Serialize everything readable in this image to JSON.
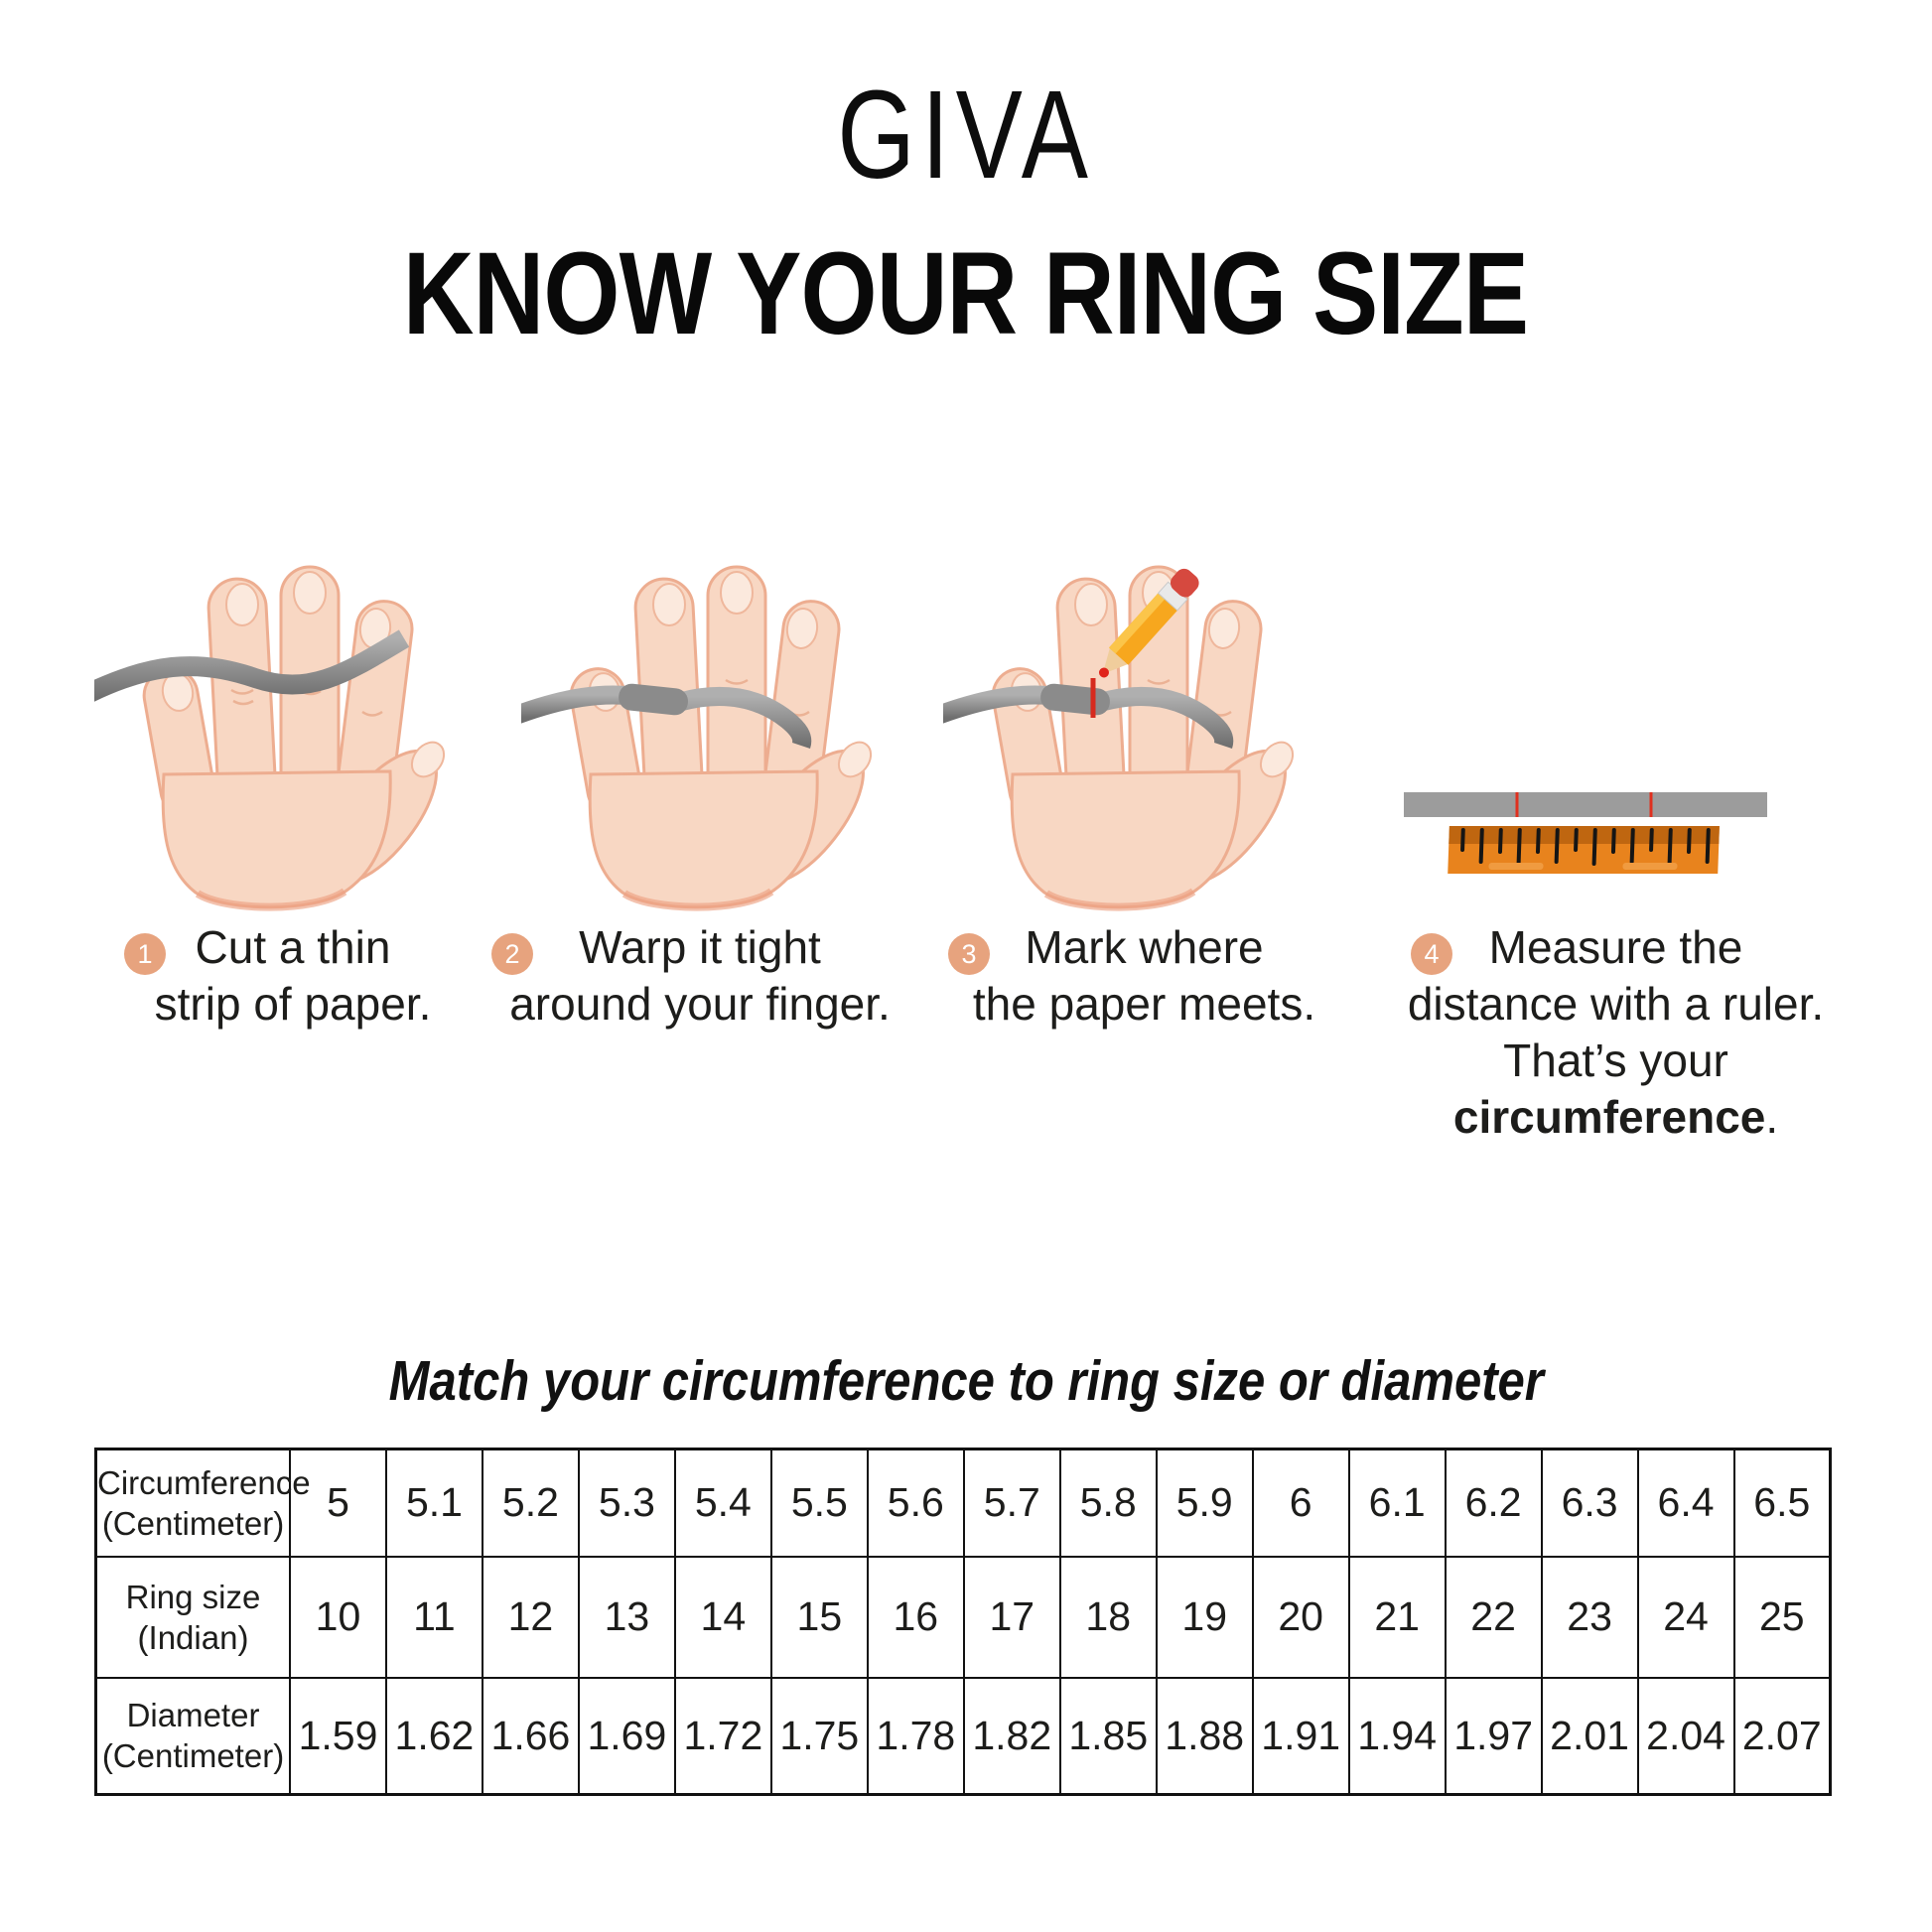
{
  "brand": {
    "name": "GIVA"
  },
  "page_title": "KNOW YOUR RING SIZE",
  "steps": [
    {
      "number": "1",
      "lines": [
        "Cut a thin",
        "strip of paper."
      ]
    },
    {
      "number": "2",
      "lines": [
        "Warp it tight",
        "around your finger."
      ]
    },
    {
      "number": "3",
      "lines": [
        "Mark where",
        "the paper meets."
      ]
    },
    {
      "number": "4",
      "lines": [
        "Measure the",
        "distance with a ruler."
      ],
      "line3": {
        "prefix": "That’s your ",
        "bold": "circumference",
        "suffix": "."
      }
    }
  ],
  "table_section": {
    "heading": "Match your circumference to ring size or diameter"
  },
  "chart_data": {
    "type": "table",
    "title": "Match your circumference to ring size or diameter",
    "rows": [
      {
        "header": [
          "Circumference",
          "(Centimeter)"
        ],
        "values": [
          "5",
          "5.1",
          "5.2",
          "5.3",
          "5.4",
          "5.5",
          "5.6",
          "5.7",
          "5.8",
          "5.9",
          "6",
          "6.1",
          "6.2",
          "6.3",
          "6.4",
          "6.5"
        ]
      },
      {
        "header": [
          "Ring size",
          "(Indian)"
        ],
        "values": [
          "10",
          "11",
          "12",
          "13",
          "14",
          "15",
          "16",
          "17",
          "18",
          "19",
          "20",
          "21",
          "22",
          "23",
          "24",
          "25"
        ]
      },
      {
        "header": [
          "Diameter",
          "(Centimeter)"
        ],
        "values": [
          "1.59",
          "1.62",
          "1.66",
          "1.69",
          "1.72",
          "1.75",
          "1.78",
          "1.82",
          "1.85",
          "1.88",
          "1.91",
          "1.94",
          "1.97",
          "2.01",
          "2.04",
          "2.07"
        ]
      }
    ]
  },
  "icons": {
    "step1": "hand-with-paper-strip-icon",
    "step2": "hand-strip-wrapped-icon",
    "step3": "hand-pencil-mark-icon",
    "step4": "ruler-measure-icon"
  },
  "colors": {
    "badge_peach": "#E7A37E",
    "strip_gray": "#8C8C8C",
    "ruler_orange": "#E8831D",
    "ruler_band": "#BF6610",
    "pencil_yellow": "#F7A71E",
    "eraser_red": "#D6493F",
    "mark_red": "#D62A1E",
    "skin": "#F8D7C3",
    "skin_outline": "#EDAD90"
  }
}
